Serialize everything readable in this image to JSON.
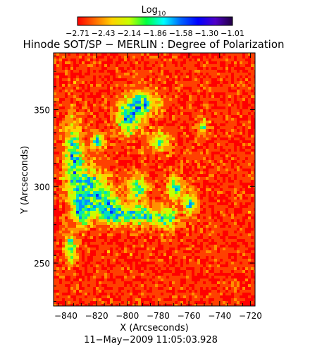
{
  "chart_data": {
    "type": "heatmap",
    "title": "Hinode SOT/SP − MERLIN : Degree of Polarization",
    "xlabel": "X (Arcseconds)",
    "ylabel": "Y (Arcseconds)",
    "date_label": "11−May−2009 11:05:03.928",
    "colorbar": {
      "label": "Log",
      "label_sub": "10",
      "range": [
        -2.71,
        -1.01
      ],
      "ticks": [
        "−2.71",
        "−2.43",
        "−2.14",
        "−1.86",
        "−1.58",
        "−1.30",
        "−1.01"
      ],
      "colormap": [
        "#ff0000",
        "#ff6a00",
        "#ffd200",
        "#c8ff00",
        "#00ff40",
        "#00ffff",
        "#0064ff",
        "#0000ff",
        "#5000c8",
        "#200040"
      ]
    },
    "xlim": [
      -848,
      -717
    ],
    "ylim": [
      222,
      387
    ],
    "xticks": [
      "−840",
      "−820",
      "−800",
      "−780",
      "−760",
      "−740",
      "−720"
    ],
    "xtick_values": [
      -840,
      -820,
      -800,
      -780,
      -760,
      -740,
      -720
    ],
    "yticks": [
      "250",
      "300",
      "350"
    ],
    "ytick_values": [
      250,
      300,
      350
    ]
  }
}
